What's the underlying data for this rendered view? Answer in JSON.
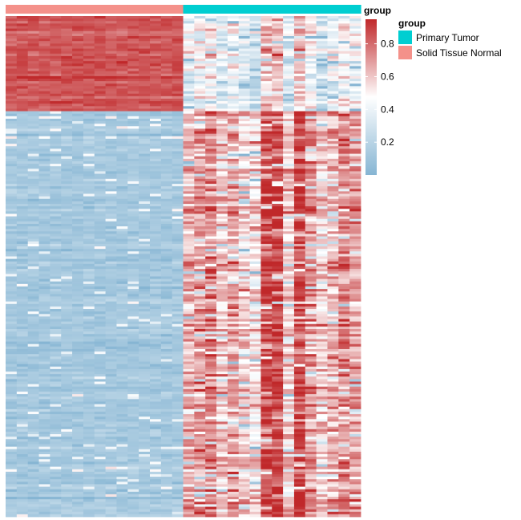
{
  "chart_data": {
    "type": "heatmap",
    "annotation_track": {
      "label": "group",
      "columns": [
        "Solid Tissue Normal",
        "Solid Tissue Normal",
        "Solid Tissue Normal",
        "Solid Tissue Normal",
        "Solid Tissue Normal",
        "Solid Tissue Normal",
        "Solid Tissue Normal",
        "Solid Tissue Normal",
        "Solid Tissue Normal",
        "Solid Tissue Normal",
        "Solid Tissue Normal",
        "Solid Tissue Normal",
        "Solid Tissue Normal",
        "Solid Tissue Normal",
        "Solid Tissue Normal",
        "Solid Tissue Normal",
        "Primary Tumor",
        "Primary Tumor",
        "Primary Tumor",
        "Primary Tumor",
        "Primary Tumor",
        "Primary Tumor",
        "Primary Tumor",
        "Primary Tumor",
        "Primary Tumor",
        "Primary Tumor",
        "Primary Tumor",
        "Primary Tumor",
        "Primary Tumor",
        "Primary Tumor",
        "Primary Tumor",
        "Primary Tumor"
      ]
    },
    "legend": {
      "title": "group",
      "entries": [
        {
          "name": "Primary Tumor",
          "color": "#00CED1"
        },
        {
          "name": "Solid Tissue Normal",
          "color": "#F4918A"
        }
      ]
    },
    "colorbar": {
      "range": [
        0.0,
        0.95
      ],
      "ticks": [
        "0.2",
        "0.4",
        "0.6",
        "0.8"
      ],
      "tick_values": [
        0.2,
        0.4,
        0.6,
        0.8
      ],
      "colors": {
        "low": "#86B5D3",
        "mid": "#FFFFFF",
        "high": "#C0282A"
      }
    },
    "structure": {
      "n_columns": 32,
      "n_rows": 200,
      "normal_columns": 16,
      "hyper_rows_fraction": 0.19,
      "row_blocks": [
        {
          "rows": "top block (about 19% of rows)",
          "normal_mean": 0.85,
          "tumor_mean": 0.4
        },
        {
          "rows": "bottom block (about 81% of rows)",
          "normal_mean": 0.12,
          "tumor_mean": 0.65
        }
      ]
    }
  }
}
